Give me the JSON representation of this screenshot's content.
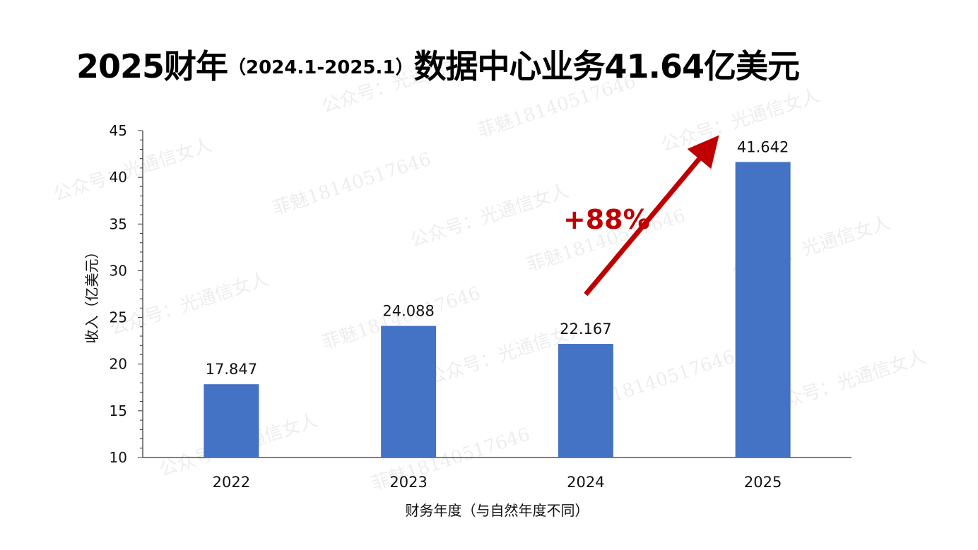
{
  "title": {
    "part1": "2025财年",
    "paren": "（2024.1-2025.1）",
    "part2": "数据中心业务41.64亿美元"
  },
  "annotation": {
    "growth_label": "+88%",
    "color": "#c00000"
  },
  "watermarks": [
    "公众号：光通信女人",
    "菲魅18140517646"
  ],
  "chart_data": {
    "type": "bar",
    "categories": [
      "2022",
      "2023",
      "2024",
      "2025"
    ],
    "values": [
      17.847,
      24.088,
      22.167,
      41.642
    ],
    "data_labels": [
      "17.847",
      "24.088",
      "22.167",
      "41.642"
    ],
    "title": "",
    "xlabel": "财务年度（与自然年度不同）",
    "ylabel": "收入（亿美元）",
    "ylim": [
      10,
      45
    ],
    "yticks": [
      10,
      15,
      20,
      25,
      30,
      35,
      40,
      45
    ],
    "bar_color": "#4472c4",
    "grid": false,
    "legend": "none"
  }
}
